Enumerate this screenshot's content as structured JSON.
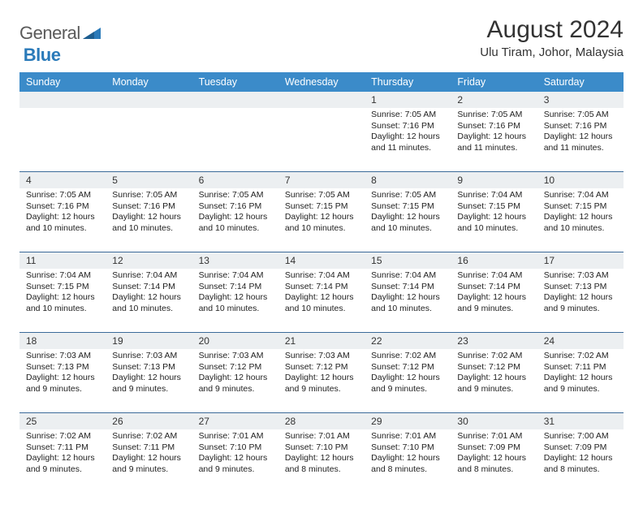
{
  "brand": {
    "part1": "General",
    "part2": "Blue"
  },
  "title": "August 2024",
  "location": "Ulu Tiram, Johor, Malaysia",
  "colors": {
    "header_bg": "#3b8bc9",
    "header_text": "#ffffff",
    "num_strip_bg": "#eceff1",
    "week_divider": "#3b6a99",
    "logo_gray": "#5a5a5a",
    "logo_blue": "#2a7ab9"
  },
  "day_headers": [
    "Sunday",
    "Monday",
    "Tuesday",
    "Wednesday",
    "Thursday",
    "Friday",
    "Saturday"
  ],
  "weeks": [
    [
      {
        "n": "",
        "sr": "",
        "ss": "",
        "dl": ""
      },
      {
        "n": "",
        "sr": "",
        "ss": "",
        "dl": ""
      },
      {
        "n": "",
        "sr": "",
        "ss": "",
        "dl": ""
      },
      {
        "n": "",
        "sr": "",
        "ss": "",
        "dl": ""
      },
      {
        "n": "1",
        "sr": "Sunrise: 7:05 AM",
        "ss": "Sunset: 7:16 PM",
        "dl": "Daylight: 12 hours and 11 minutes."
      },
      {
        "n": "2",
        "sr": "Sunrise: 7:05 AM",
        "ss": "Sunset: 7:16 PM",
        "dl": "Daylight: 12 hours and 11 minutes."
      },
      {
        "n": "3",
        "sr": "Sunrise: 7:05 AM",
        "ss": "Sunset: 7:16 PM",
        "dl": "Daylight: 12 hours and 11 minutes."
      }
    ],
    [
      {
        "n": "4",
        "sr": "Sunrise: 7:05 AM",
        "ss": "Sunset: 7:16 PM",
        "dl": "Daylight: 12 hours and 10 minutes."
      },
      {
        "n": "5",
        "sr": "Sunrise: 7:05 AM",
        "ss": "Sunset: 7:16 PM",
        "dl": "Daylight: 12 hours and 10 minutes."
      },
      {
        "n": "6",
        "sr": "Sunrise: 7:05 AM",
        "ss": "Sunset: 7:16 PM",
        "dl": "Daylight: 12 hours and 10 minutes."
      },
      {
        "n": "7",
        "sr": "Sunrise: 7:05 AM",
        "ss": "Sunset: 7:15 PM",
        "dl": "Daylight: 12 hours and 10 minutes."
      },
      {
        "n": "8",
        "sr": "Sunrise: 7:05 AM",
        "ss": "Sunset: 7:15 PM",
        "dl": "Daylight: 12 hours and 10 minutes."
      },
      {
        "n": "9",
        "sr": "Sunrise: 7:04 AM",
        "ss": "Sunset: 7:15 PM",
        "dl": "Daylight: 12 hours and 10 minutes."
      },
      {
        "n": "10",
        "sr": "Sunrise: 7:04 AM",
        "ss": "Sunset: 7:15 PM",
        "dl": "Daylight: 12 hours and 10 minutes."
      }
    ],
    [
      {
        "n": "11",
        "sr": "Sunrise: 7:04 AM",
        "ss": "Sunset: 7:15 PM",
        "dl": "Daylight: 12 hours and 10 minutes."
      },
      {
        "n": "12",
        "sr": "Sunrise: 7:04 AM",
        "ss": "Sunset: 7:14 PM",
        "dl": "Daylight: 12 hours and 10 minutes."
      },
      {
        "n": "13",
        "sr": "Sunrise: 7:04 AM",
        "ss": "Sunset: 7:14 PM",
        "dl": "Daylight: 12 hours and 10 minutes."
      },
      {
        "n": "14",
        "sr": "Sunrise: 7:04 AM",
        "ss": "Sunset: 7:14 PM",
        "dl": "Daylight: 12 hours and 10 minutes."
      },
      {
        "n": "15",
        "sr": "Sunrise: 7:04 AM",
        "ss": "Sunset: 7:14 PM",
        "dl": "Daylight: 12 hours and 10 minutes."
      },
      {
        "n": "16",
        "sr": "Sunrise: 7:04 AM",
        "ss": "Sunset: 7:14 PM",
        "dl": "Daylight: 12 hours and 9 minutes."
      },
      {
        "n": "17",
        "sr": "Sunrise: 7:03 AM",
        "ss": "Sunset: 7:13 PM",
        "dl": "Daylight: 12 hours and 9 minutes."
      }
    ],
    [
      {
        "n": "18",
        "sr": "Sunrise: 7:03 AM",
        "ss": "Sunset: 7:13 PM",
        "dl": "Daylight: 12 hours and 9 minutes."
      },
      {
        "n": "19",
        "sr": "Sunrise: 7:03 AM",
        "ss": "Sunset: 7:13 PM",
        "dl": "Daylight: 12 hours and 9 minutes."
      },
      {
        "n": "20",
        "sr": "Sunrise: 7:03 AM",
        "ss": "Sunset: 7:12 PM",
        "dl": "Daylight: 12 hours and 9 minutes."
      },
      {
        "n": "21",
        "sr": "Sunrise: 7:03 AM",
        "ss": "Sunset: 7:12 PM",
        "dl": "Daylight: 12 hours and 9 minutes."
      },
      {
        "n": "22",
        "sr": "Sunrise: 7:02 AM",
        "ss": "Sunset: 7:12 PM",
        "dl": "Daylight: 12 hours and 9 minutes."
      },
      {
        "n": "23",
        "sr": "Sunrise: 7:02 AM",
        "ss": "Sunset: 7:12 PM",
        "dl": "Daylight: 12 hours and 9 minutes."
      },
      {
        "n": "24",
        "sr": "Sunrise: 7:02 AM",
        "ss": "Sunset: 7:11 PM",
        "dl": "Daylight: 12 hours and 9 minutes."
      }
    ],
    [
      {
        "n": "25",
        "sr": "Sunrise: 7:02 AM",
        "ss": "Sunset: 7:11 PM",
        "dl": "Daylight: 12 hours and 9 minutes."
      },
      {
        "n": "26",
        "sr": "Sunrise: 7:02 AM",
        "ss": "Sunset: 7:11 PM",
        "dl": "Daylight: 12 hours and 9 minutes."
      },
      {
        "n": "27",
        "sr": "Sunrise: 7:01 AM",
        "ss": "Sunset: 7:10 PM",
        "dl": "Daylight: 12 hours and 9 minutes."
      },
      {
        "n": "28",
        "sr": "Sunrise: 7:01 AM",
        "ss": "Sunset: 7:10 PM",
        "dl": "Daylight: 12 hours and 8 minutes."
      },
      {
        "n": "29",
        "sr": "Sunrise: 7:01 AM",
        "ss": "Sunset: 7:10 PM",
        "dl": "Daylight: 12 hours and 8 minutes."
      },
      {
        "n": "30",
        "sr": "Sunrise: 7:01 AM",
        "ss": "Sunset: 7:09 PM",
        "dl": "Daylight: 12 hours and 8 minutes."
      },
      {
        "n": "31",
        "sr": "Sunrise: 7:00 AM",
        "ss": "Sunset: 7:09 PM",
        "dl": "Daylight: 12 hours and 8 minutes."
      }
    ]
  ]
}
